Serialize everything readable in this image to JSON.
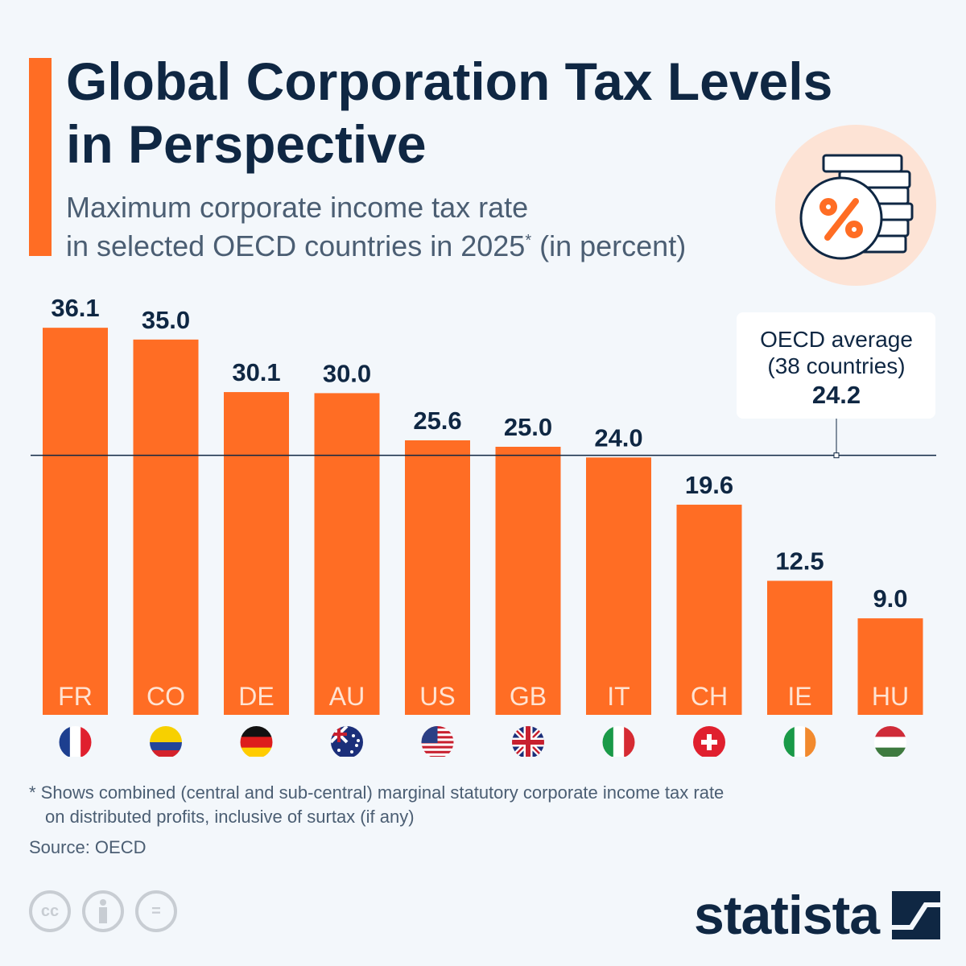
{
  "title_line1": "Global Corporation Tax Levels",
  "title_line2": "in Perspective",
  "subtitle_line1": "Maximum corporate income tax rate",
  "subtitle_line2": "in selected OECD countries in 2025",
  "subtitle_sup": "*",
  "subtitle_tail": " (in percent)",
  "icon": "coins-percent-icon",
  "colors": {
    "bar": "#ff6d24",
    "text": "#0f2743",
    "line": "#0f2743"
  },
  "chart_data": {
    "type": "bar",
    "categories": [
      "FR",
      "CO",
      "DE",
      "AU",
      "US",
      "GB",
      "IT",
      "CH",
      "IE",
      "HU"
    ],
    "values": [
      36.1,
      35.0,
      30.1,
      30.0,
      25.6,
      25.0,
      24.0,
      19.6,
      12.5,
      9.0
    ],
    "value_labels": [
      "36.1",
      "35.0",
      "30.1",
      "30.0",
      "25.6",
      "25.0",
      "24.0",
      "19.6",
      "12.5",
      "9.0"
    ],
    "flags": [
      "france-flag",
      "colombia-flag",
      "germany-flag",
      "australia-flag",
      "usa-flag",
      "uk-flag",
      "italy-flag",
      "switzerland-flag",
      "ireland-flag",
      "hungary-flag"
    ],
    "reference_line": {
      "value": 24.2,
      "label_line1": "OECD average",
      "label_line2": "(38 countries)",
      "value_label": "24.2"
    },
    "ylim": [
      0,
      36.1
    ]
  },
  "footnote_line1": "* Shows combined (central and sub-central) marginal statutory corporate income tax rate",
  "footnote_line2": "on distributed profits, inclusive of surtax (if any)",
  "source": "Source: OECD",
  "license_icons": [
    "cc-icon",
    "attribution-icon",
    "no-derivatives-icon"
  ],
  "license_text": {
    "cc": "cc",
    "eq": "="
  },
  "brand": "statista"
}
